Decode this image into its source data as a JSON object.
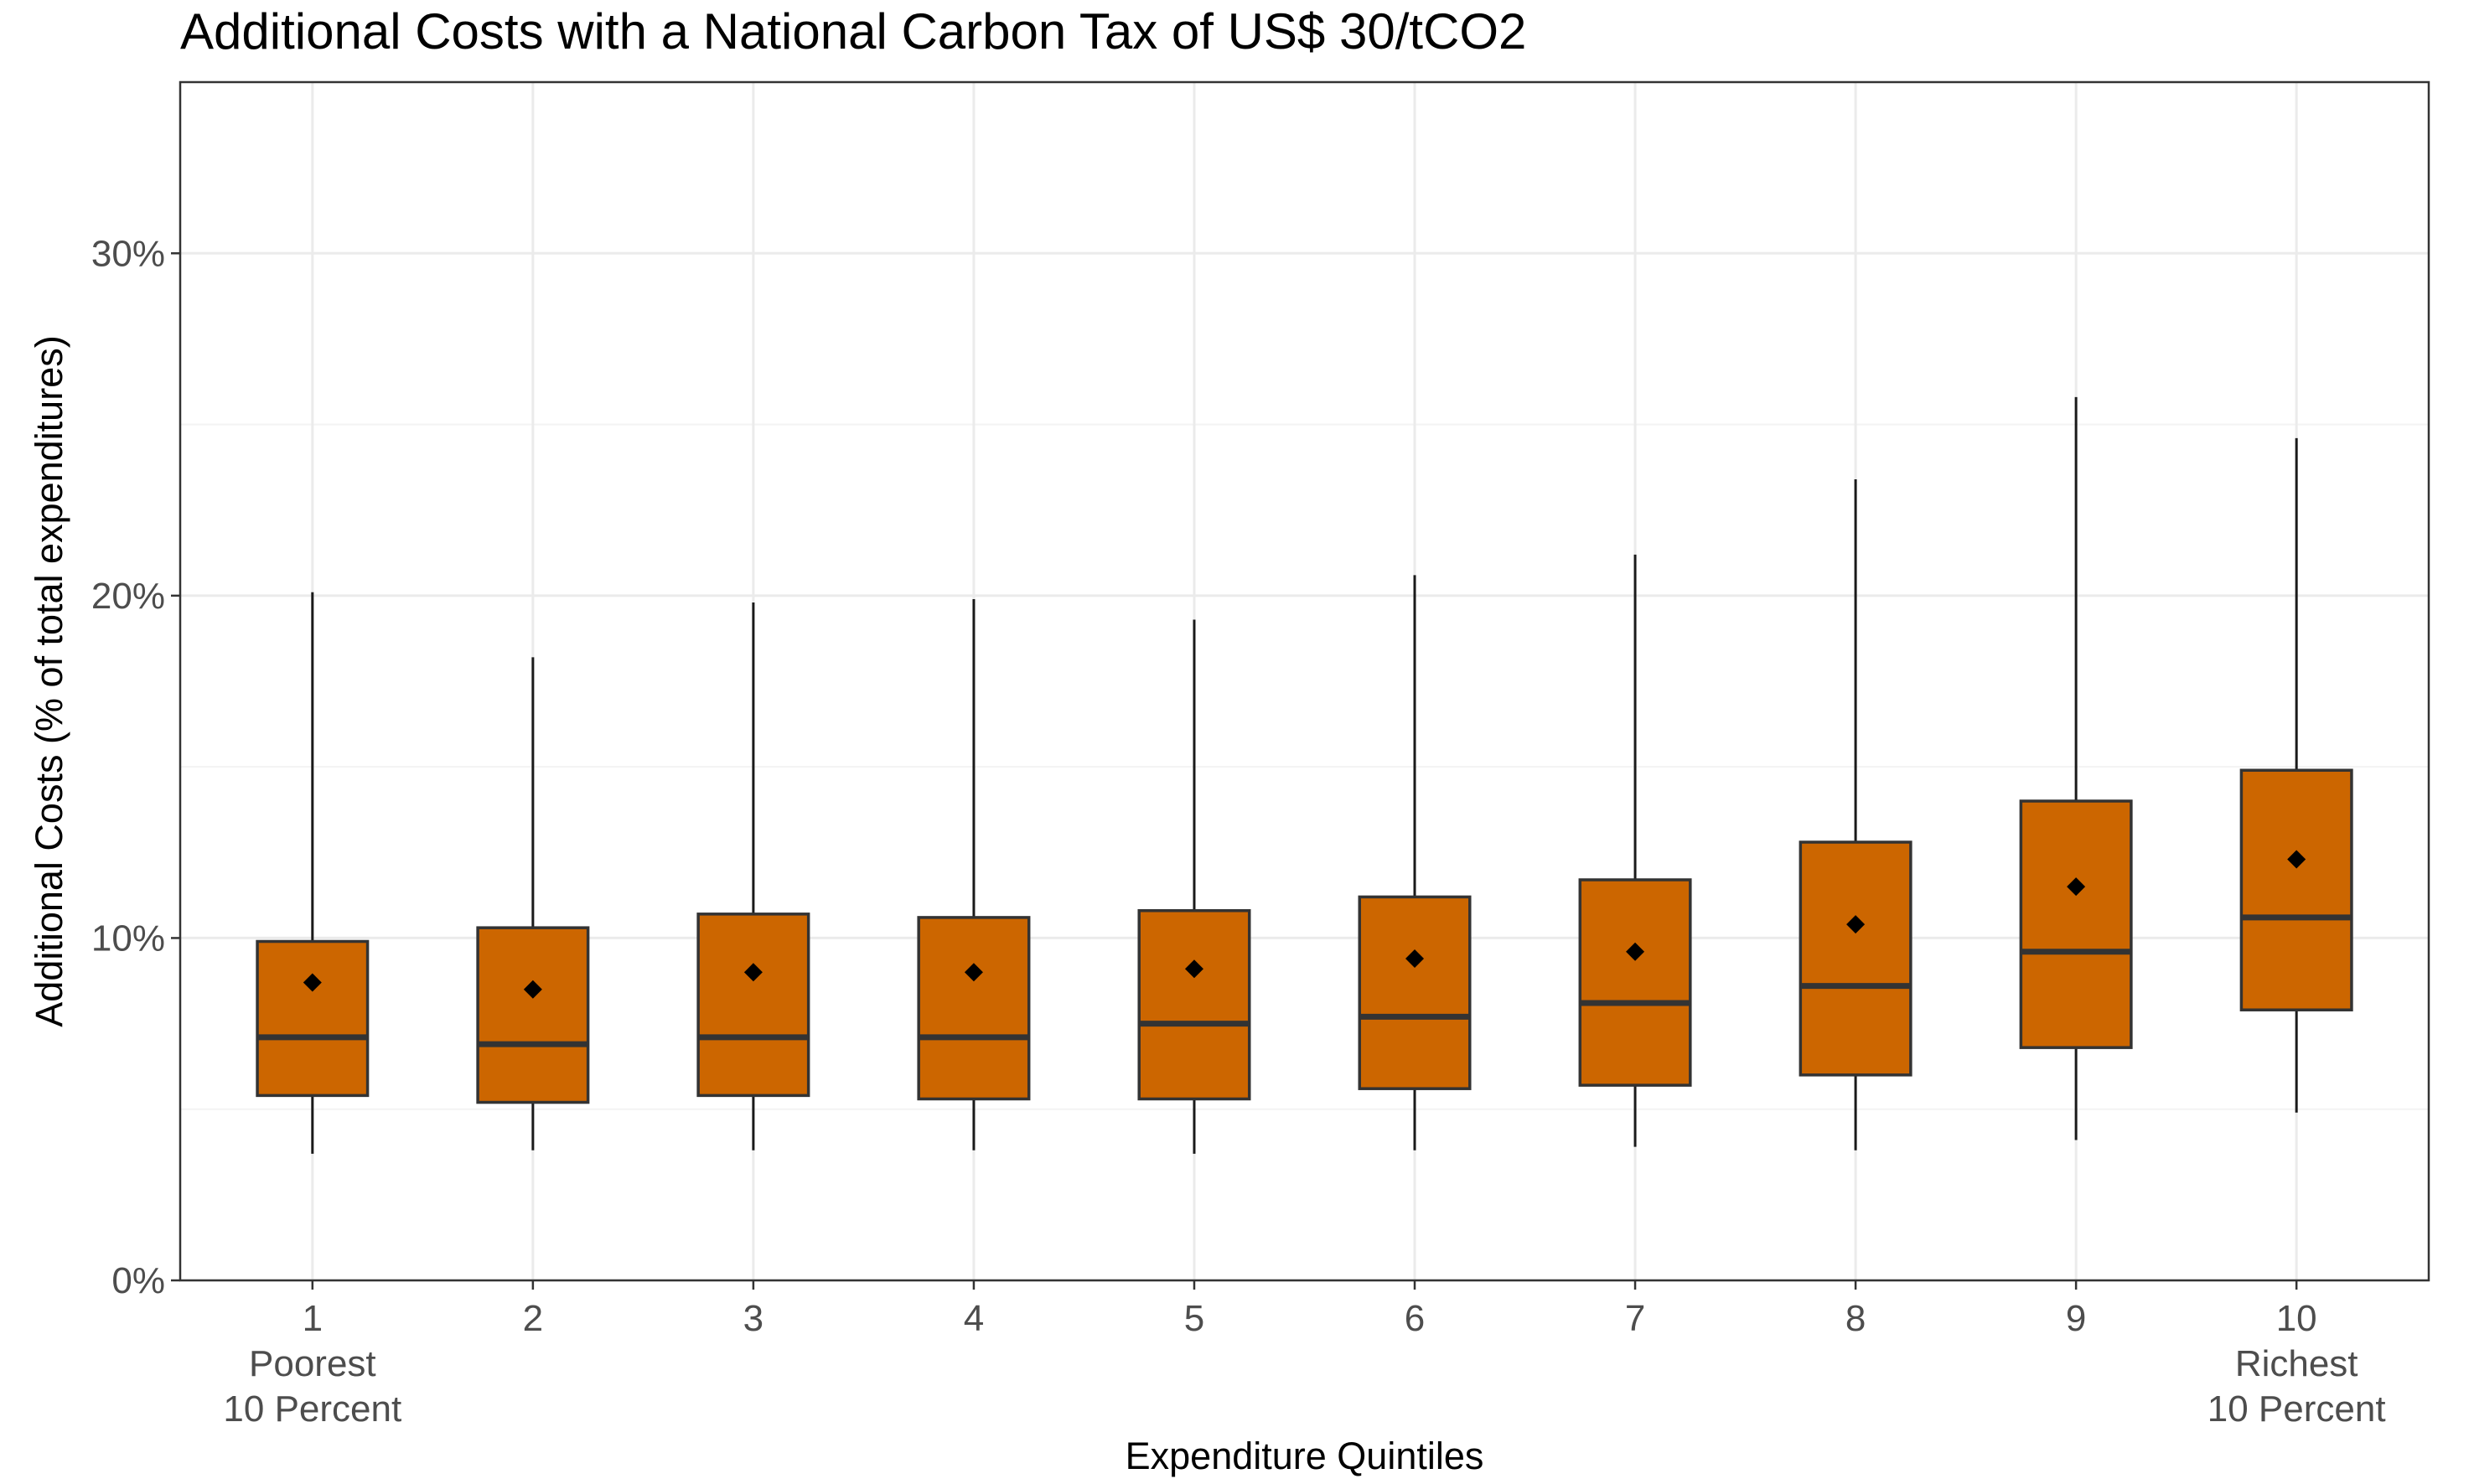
{
  "chart_data": {
    "type": "boxplot",
    "title": "Additional Costs with a National Carbon Tax of US$ 30/tCO2",
    "xlabel": "Expenditure Quintiles",
    "ylabel": "Additional Costs (% of total expenditures)",
    "ylim": [
      0,
      35
    ],
    "y_ticks": [
      0,
      10,
      20,
      30
    ],
    "y_tick_labels": [
      "0%",
      "10%",
      "20%",
      "30%"
    ],
    "y_minor_ticks": [
      5,
      15,
      25
    ],
    "grid": true,
    "box_color": "#CC6600",
    "categories": [
      "1",
      "2",
      "3",
      "4",
      "5",
      "6",
      "7",
      "8",
      "9",
      "10"
    ],
    "category_sublabels": [
      [
        "Poorest",
        "10 Percent"
      ],
      [],
      [],
      [],
      [],
      [],
      [],
      [],
      [],
      [
        "Richest",
        "10 Percent"
      ]
    ],
    "boxes": [
      {
        "category": "1",
        "whisker_low": 3.7,
        "q1": 5.4,
        "median": 7.1,
        "q3": 9.9,
        "whisker_high": 20.1,
        "mean": 8.7
      },
      {
        "category": "2",
        "whisker_low": 3.8,
        "q1": 5.2,
        "median": 6.9,
        "q3": 10.3,
        "whisker_high": 18.2,
        "mean": 8.5
      },
      {
        "category": "3",
        "whisker_low": 3.8,
        "q1": 5.4,
        "median": 7.1,
        "q3": 10.7,
        "whisker_high": 19.8,
        "mean": 9.0
      },
      {
        "category": "4",
        "whisker_low": 3.8,
        "q1": 5.3,
        "median": 7.1,
        "q3": 10.6,
        "whisker_high": 19.9,
        "mean": 9.0
      },
      {
        "category": "5",
        "whisker_low": 3.7,
        "q1": 5.3,
        "median": 7.5,
        "q3": 10.8,
        "whisker_high": 19.3,
        "mean": 9.1
      },
      {
        "category": "6",
        "whisker_low": 3.8,
        "q1": 5.6,
        "median": 7.7,
        "q3": 11.2,
        "whisker_high": 20.6,
        "mean": 9.4
      },
      {
        "category": "7",
        "whisker_low": 3.9,
        "q1": 5.7,
        "median": 8.1,
        "q3": 11.7,
        "whisker_high": 21.2,
        "mean": 9.6
      },
      {
        "category": "8",
        "whisker_low": 3.8,
        "q1": 6.0,
        "median": 8.6,
        "q3": 12.8,
        "whisker_high": 23.4,
        "mean": 10.4
      },
      {
        "category": "9",
        "whisker_low": 4.1,
        "q1": 6.8,
        "median": 9.6,
        "q3": 14.0,
        "whisker_high": 25.8,
        "mean": 11.5
      },
      {
        "category": "10",
        "whisker_low": 4.9,
        "q1": 7.9,
        "median": 10.6,
        "q3": 14.9,
        "whisker_high": 24.6,
        "mean": 12.3
      }
    ]
  }
}
